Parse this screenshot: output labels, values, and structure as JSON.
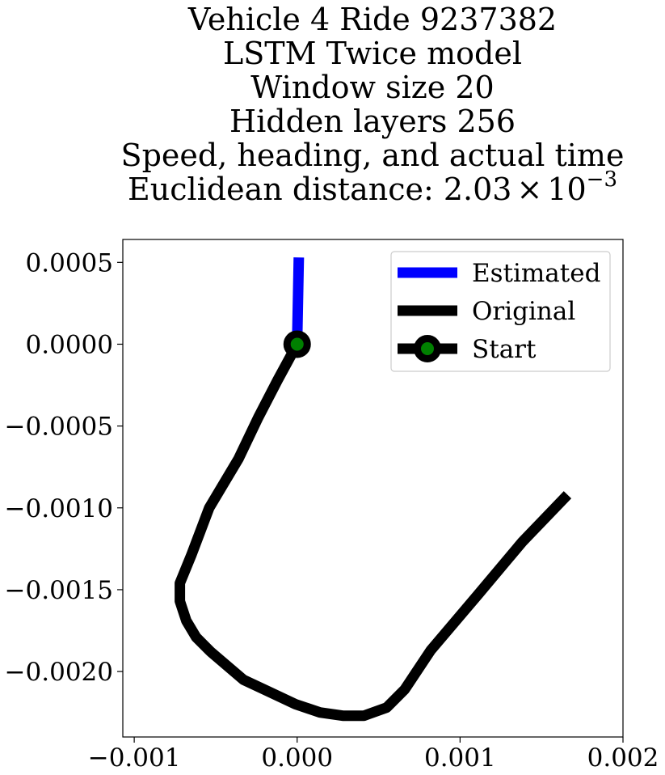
{
  "chart_data": {
    "type": "line",
    "title_lines": [
      "Vehicle 4 Ride 9237382",
      "LSTM Twice model",
      "Window size 20",
      "Hidden layers 256",
      "Speed, heading, and actual time"
    ],
    "distance_label": "Euclidean distance: ",
    "distance_mantissa": "2.03",
    "distance_times": "×",
    "distance_base": "10",
    "distance_exponent": "−3",
    "xlim": [
      -0.00107,
      0.002
    ],
    "ylim": [
      -0.0024,
      0.00064
    ],
    "x_ticks": [
      {
        "value": -0.001,
        "label": "−0.001"
      },
      {
        "value": 0.0,
        "label": "0.000"
      },
      {
        "value": 0.001,
        "label": "0.001"
      },
      {
        "value": 0.002,
        "label": "0.002"
      }
    ],
    "y_ticks": [
      {
        "value": 0.0005,
        "label": "0.0005"
      },
      {
        "value": 0.0,
        "label": "0.0000"
      },
      {
        "value": -0.0005,
        "label": "−0.0005"
      },
      {
        "value": -0.001,
        "label": "−0.0010"
      },
      {
        "value": -0.0015,
        "label": "−0.0015"
      },
      {
        "value": -0.002,
        "label": "−0.0020"
      }
    ],
    "grid": false,
    "legend_position": "top-right",
    "series": [
      {
        "name": "Estimated",
        "color": "#0000ff",
        "x": [
          0.0,
          1e-05
        ],
        "y": [
          0.0,
          0.00053
        ]
      },
      {
        "name": "Original",
        "color": "#000000",
        "x": [
          0.0,
          -0.00012,
          -0.00024,
          -0.00036,
          -0.00054,
          -0.00065,
          -0.00072,
          -0.00072,
          -0.00068,
          -0.00062,
          -0.00053,
          -0.00033,
          -0.00018,
          -1e-05,
          0.00014,
          0.00028,
          0.00041,
          0.00055,
          0.00066,
          0.00082,
          0.00111,
          0.00138,
          0.00166
        ],
        "y": [
          0.0,
          -0.00022,
          -0.00045,
          -0.0007,
          -0.001,
          -0.00129,
          -0.00146,
          -0.00157,
          -0.00169,
          -0.00179,
          -0.00188,
          -0.00205,
          -0.00212,
          -0.0022,
          -0.00225,
          -0.00227,
          -0.00227,
          -0.00222,
          -0.00211,
          -0.00187,
          -0.00153,
          -0.00121,
          -0.00092
        ]
      }
    ],
    "start_marker": {
      "name": "Start",
      "x": 0.0,
      "y": 0.0,
      "edge_color": "#000000",
      "face_color": "#008000"
    }
  }
}
